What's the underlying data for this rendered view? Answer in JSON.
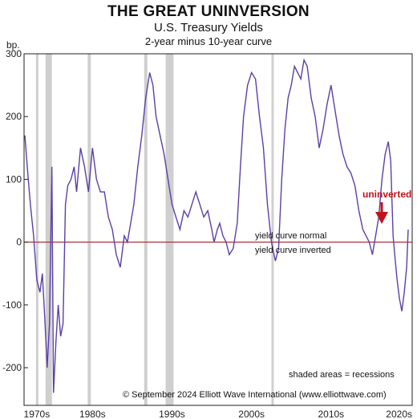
{
  "chart_data": {
    "type": "line",
    "title": "THE GREAT UNINVERSION",
    "subtitle": "U.S. Treasury Yields",
    "subtitle2": "2-year minus 10-year curve",
    "ylabel": "bp.",
    "xlabel": "",
    "ylim": [
      -260,
      300
    ],
    "xlim": [
      1976.4,
      2025.2
    ],
    "y_ticks": [
      300,
      200,
      100,
      0,
      -100,
      -200
    ],
    "x_tick_labels": [
      "1970s",
      "1980s",
      "1990s",
      "2000s",
      "2010s",
      "2020s"
    ],
    "x_tick_positions": [
      1978,
      1985,
      1995,
      2005,
      2015,
      2025
    ],
    "grid": false,
    "zero_line": true,
    "series": [
      {
        "name": "",
        "color": "#5b3fa6",
        "x": [
          1976.5,
          1976.8,
          1977.2,
          1977.6,
          1978.0,
          1978.4,
          1978.7,
          1979.0,
          1979.3,
          1979.6,
          1979.9,
          1980.1,
          1980.4,
          1980.7,
          1981.0,
          1981.3,
          1981.6,
          1981.9,
          1982.3,
          1982.7,
          1983.0,
          1983.5,
          1984.0,
          1984.5,
          1985.0,
          1985.5,
          1986.0,
          1986.5,
          1987.0,
          1987.5,
          1988.0,
          1988.5,
          1989.0,
          1989.4,
          1989.8,
          1990.2,
          1990.7,
          1991.2,
          1991.7,
          1992.2,
          1992.6,
          1993.0,
          1993.5,
          1994.0,
          1994.5,
          1995.0,
          1995.5,
          1996.0,
          1996.5,
          1997.0,
          1997.5,
          1998.0,
          1998.5,
          1999.0,
          1999.5,
          2000.0,
          2000.3,
          2000.7,
          2001.0,
          2001.4,
          2001.8,
          2002.2,
          2002.7,
          2003.2,
          2003.6,
          2004.0,
          2004.5,
          2005.0,
          2005.5,
          2006.0,
          2006.5,
          2007.0,
          2007.5,
          2008.0,
          2008.4,
          2008.8,
          2009.2,
          2009.6,
          2010.0,
          2010.4,
          2010.8,
          2011.2,
          2011.6,
          2012.0,
          2012.5,
          2013.0,
          2013.5,
          2014.0,
          2014.5,
          2015.0,
          2015.5,
          2016.0,
          2016.5,
          2017.0,
          2017.5,
          2018.0,
          2018.5,
          2019.0,
          2019.4,
          2019.8,
          2020.2,
          2020.6,
          2021.0,
          2021.4,
          2021.8,
          2022.2,
          2022.5,
          2022.8,
          2023.0,
          2023.3,
          2023.6,
          2023.9,
          2024.2,
          2024.5,
          2024.7
        ],
        "values": [
          170,
          120,
          60,
          10,
          -60,
          -80,
          -50,
          -120,
          -200,
          -130,
          120,
          -240,
          -160,
          -100,
          -150,
          -130,
          60,
          90,
          100,
          120,
          80,
          150,
          120,
          80,
          150,
          100,
          80,
          80,
          40,
          20,
          -20,
          -40,
          10,
          0,
          30,
          60,
          120,
          170,
          230,
          270,
          250,
          200,
          170,
          140,
          100,
          60,
          40,
          20,
          50,
          40,
          60,
          80,
          60,
          40,
          50,
          20,
          0,
          20,
          30,
          10,
          0,
          -20,
          -10,
          30,
          120,
          200,
          250,
          270,
          260,
          200,
          150,
          60,
          0,
          -30,
          -10,
          100,
          180,
          230,
          250,
          280,
          270,
          260,
          290,
          280,
          230,
          200,
          150,
          180,
          220,
          250,
          210,
          170,
          140,
          120,
          110,
          90,
          50,
          20,
          10,
          0,
          -20,
          10,
          40,
          100,
          140,
          160,
          130,
          10,
          -20,
          -60,
          -90,
          -110,
          -80,
          -40,
          20
        ]
      }
    ],
    "recessions": [
      [
        1977.9,
        1978.2
      ],
      [
        1979.1,
        1979.9
      ],
      [
        1984.4,
        1984.8
      ],
      [
        1991.5,
        1991.9
      ],
      [
        1994.2,
        1995.2
      ],
      [
        2007.5,
        2007.8
      ]
    ],
    "annotations": {
      "normal": "yield curve normal",
      "inverted": "yield curve inverted",
      "uninverted": "uninverted",
      "shaded": "shaded areas = recessions",
      "copyright": "© September 2024 Elliott Wave International (www.elliottwave.com)"
    }
  }
}
